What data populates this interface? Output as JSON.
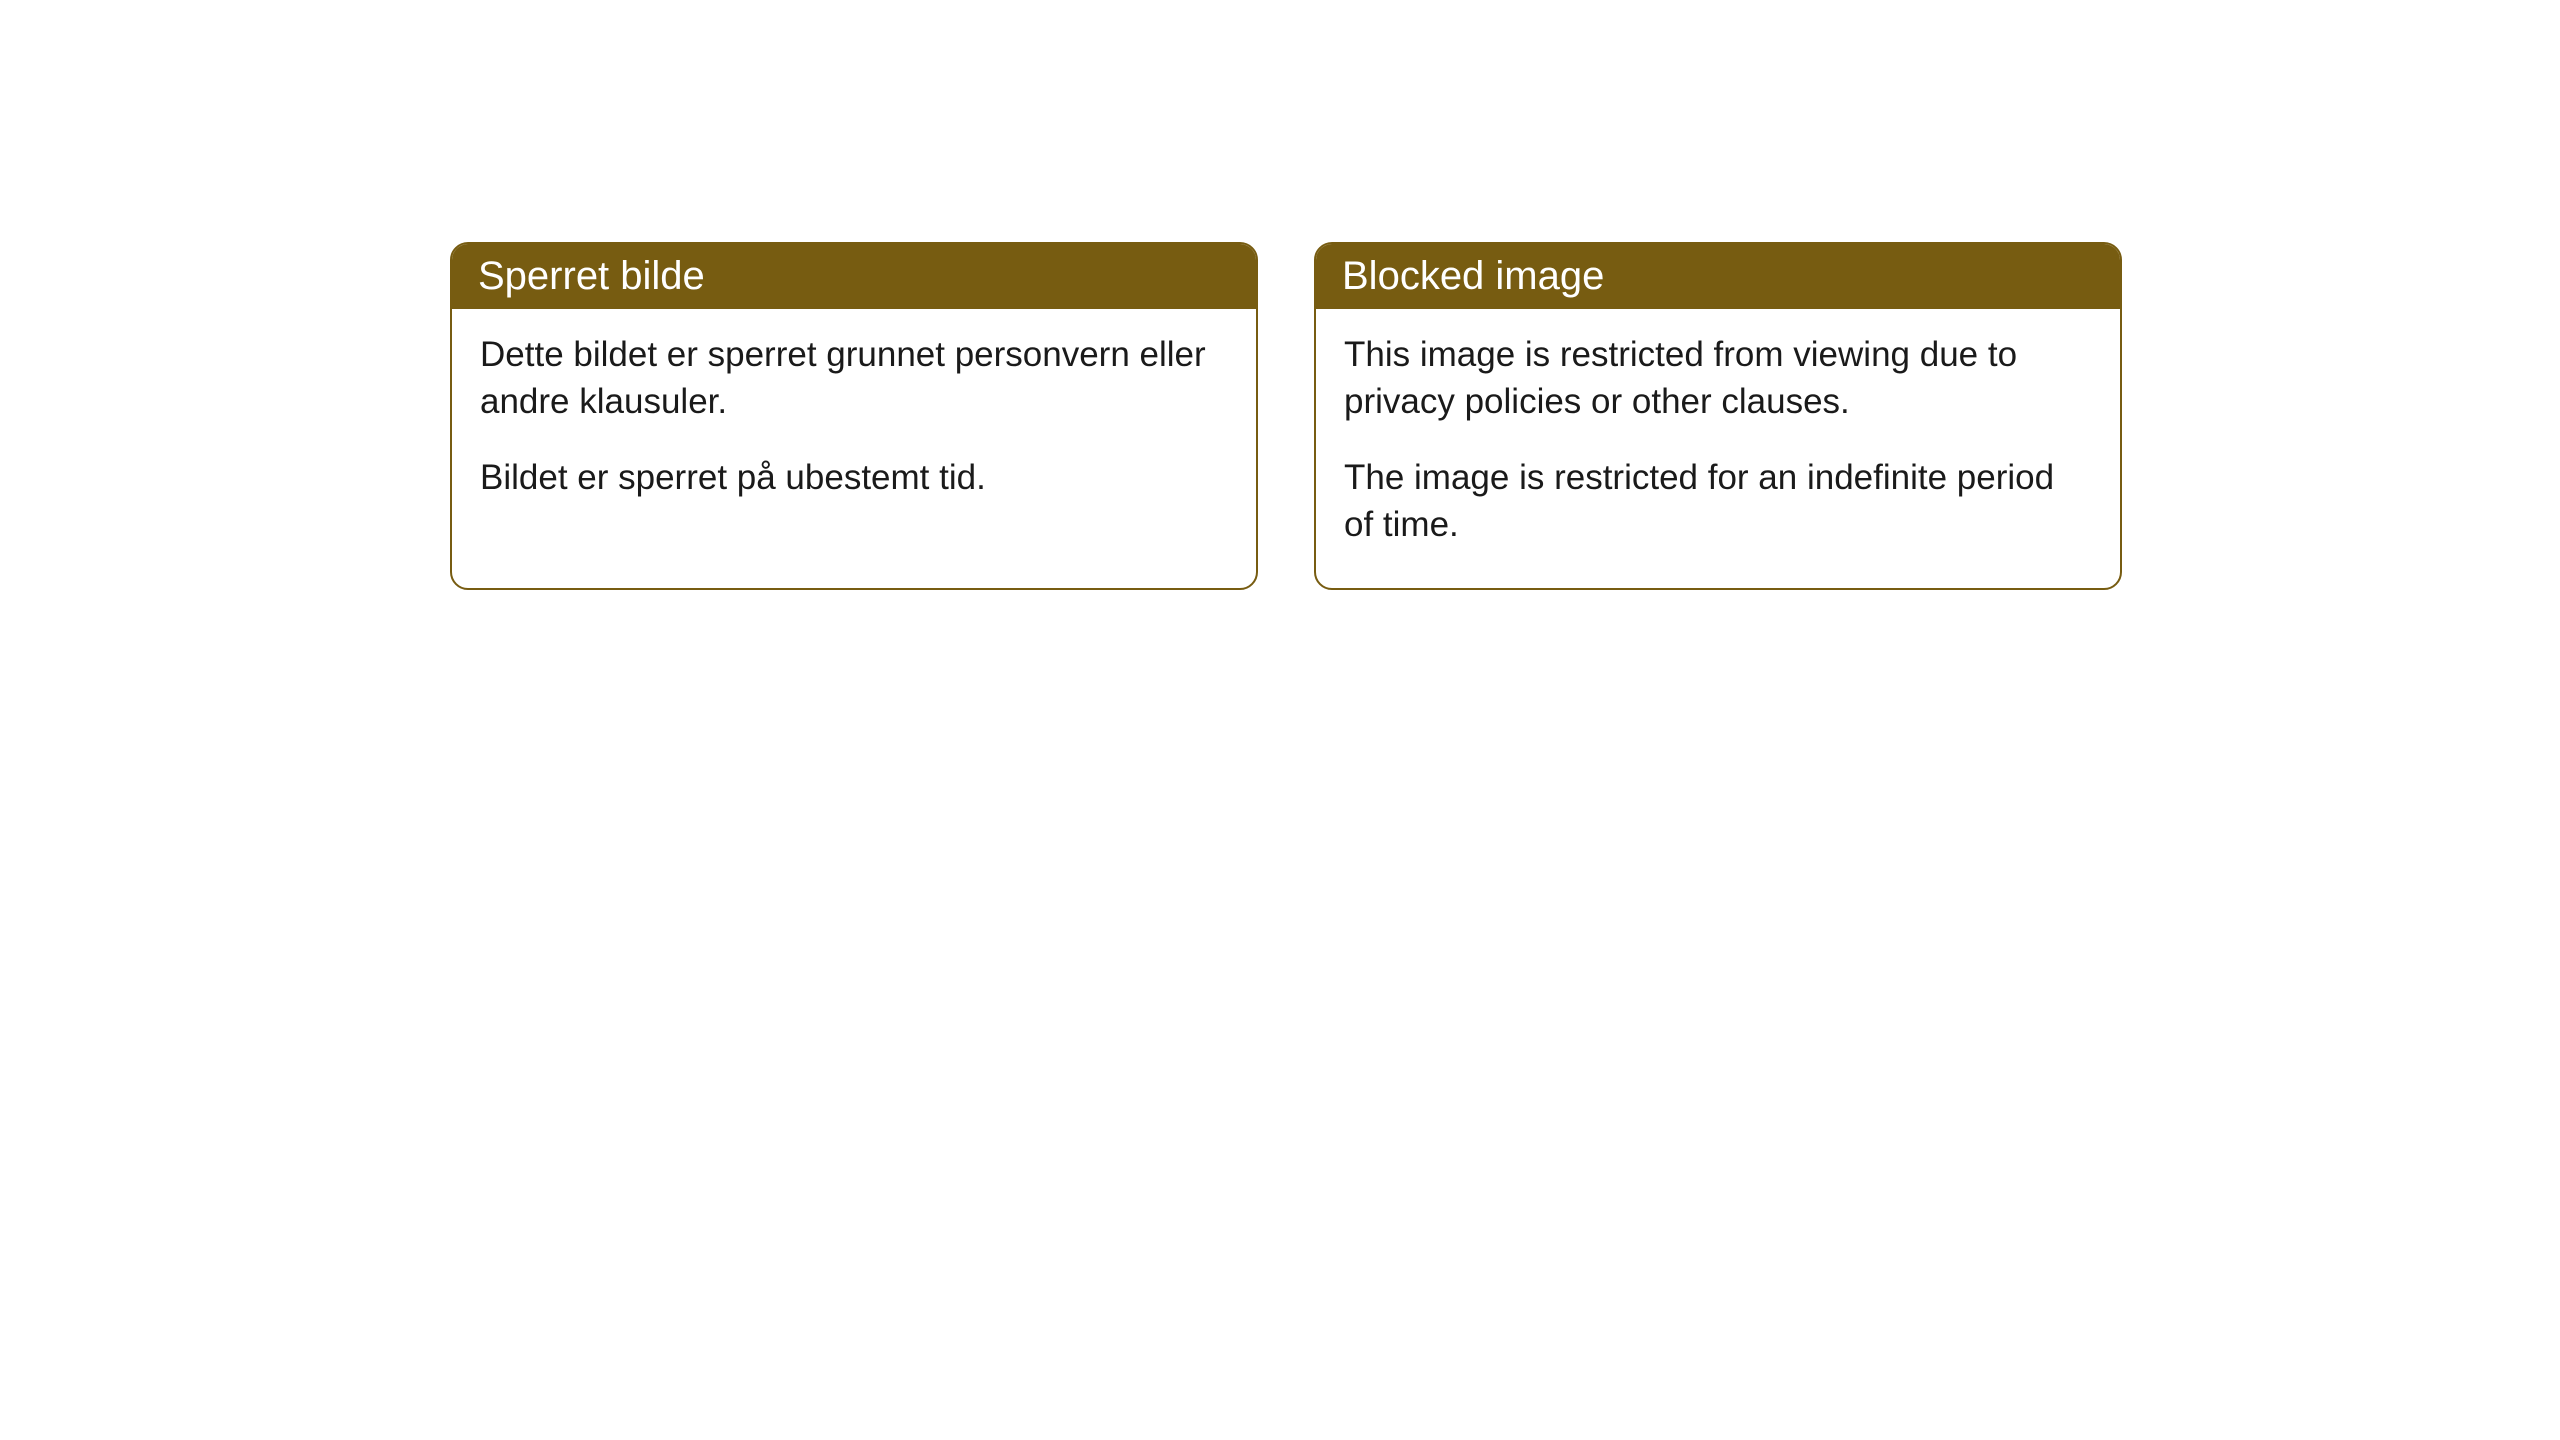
{
  "cards": [
    {
      "title": "Sperret bilde",
      "paragraph1": "Dette bildet er sperret grunnet personvern eller andre klausuler.",
      "paragraph2": "Bildet er sperret på ubestemt tid."
    },
    {
      "title": "Blocked image",
      "paragraph1": "This image is restricted from viewing due to privacy policies or other clauses.",
      "paragraph2": "The image is restricted for an indefinite period of time."
    }
  ],
  "styling": {
    "header_background": "#775c11",
    "header_text_color": "#ffffff",
    "border_color": "#775c11",
    "body_background": "#ffffff",
    "body_text_color": "#1a1a1a",
    "border_radius": 18,
    "header_fontsize": 40,
    "body_fontsize": 35
  }
}
